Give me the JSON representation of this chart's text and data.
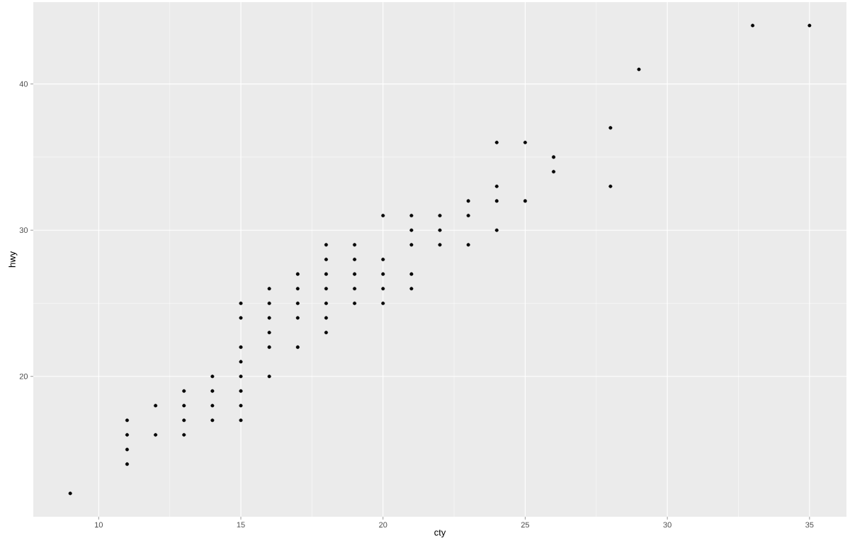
{
  "chart_data": {
    "type": "scatter",
    "xlabel": "cty",
    "ylabel": "hwy",
    "color": "#000000",
    "grid": true,
    "x": [
      9,
      11,
      11,
      11,
      11,
      12,
      12,
      13,
      13,
      13,
      13,
      14,
      14,
      14,
      14,
      15,
      15,
      15,
      15,
      15,
      15,
      15,
      15,
      16,
      16,
      16,
      16,
      16,
      16,
      17,
      17,
      17,
      17,
      17,
      18,
      18,
      18,
      18,
      18,
      18,
      18,
      19,
      19,
      19,
      19,
      19,
      20,
      20,
      20,
      20,
      20,
      21,
      21,
      21,
      21,
      21,
      22,
      22,
      22,
      23,
      23,
      23,
      24,
      24,
      24,
      24,
      25,
      25,
      26,
      26,
      28,
      28,
      29,
      33,
      35
    ],
    "values": [
      12,
      14,
      15,
      16,
      17,
      16,
      18,
      16,
      17,
      18,
      19,
      17,
      18,
      19,
      20,
      17,
      18,
      19,
      20,
      21,
      22,
      24,
      25,
      20,
      22,
      23,
      24,
      25,
      26,
      22,
      24,
      25,
      26,
      27,
      23,
      24,
      25,
      26,
      27,
      28,
      29,
      25,
      26,
      27,
      28,
      29,
      25,
      26,
      27,
      28,
      31,
      26,
      27,
      29,
      30,
      31,
      29,
      30,
      31,
      29,
      31,
      32,
      30,
      32,
      33,
      36,
      32,
      36,
      34,
      35,
      33,
      37,
      41,
      44,
      44
    ],
    "xlim": [
      7.7,
      36.3
    ],
    "ylim": [
      10.4,
      45.6
    ],
    "xticks": [
      10,
      15,
      20,
      25,
      30,
      35
    ],
    "yticks": [
      20,
      30,
      40
    ]
  }
}
